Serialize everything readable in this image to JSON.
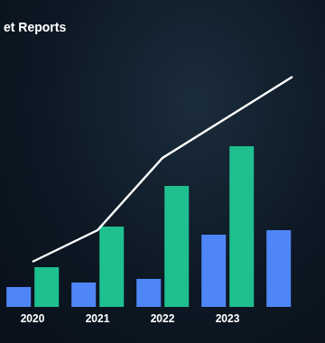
{
  "chart_data": {
    "type": "bar",
    "title": "et Reports",
    "categories": [
      "2020",
      "2021",
      "2022",
      "2023",
      null
    ],
    "series": [
      {
        "type": "bar",
        "color": "#4f86f7",
        "values": [
          22,
          27,
          31,
          80,
          85
        ]
      },
      {
        "type": "bar",
        "color": "#1fbf8f",
        "values": [
          44,
          89,
          134,
          178,
          null
        ]
      },
      {
        "type": "line",
        "color": "#ffffff",
        "values": [
          50,
          85,
          165,
          210,
          255
        ]
      }
    ],
    "ylim": [
      0,
      300
    ],
    "tick_labels": "x",
    "grid": false
  }
}
